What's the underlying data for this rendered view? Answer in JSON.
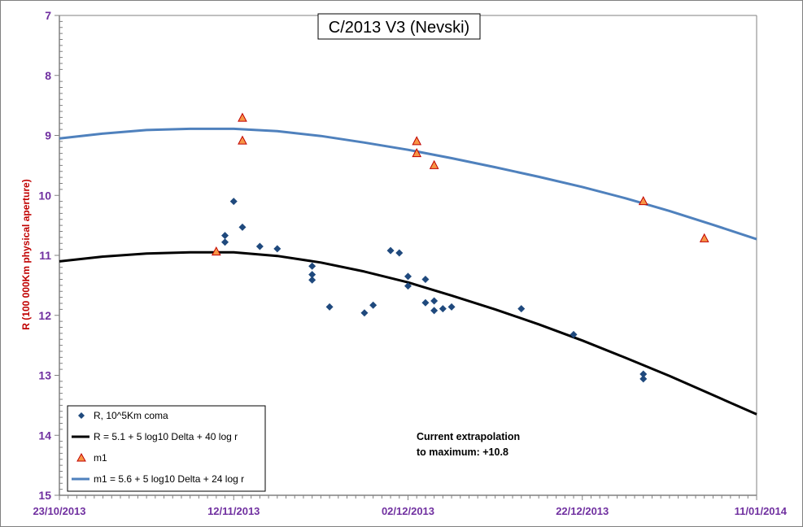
{
  "chart_data": {
    "type": "scatter",
    "title": "C/2013 V3 (Nevski)",
    "ylabel": "R (100 000Km physical aperture)",
    "xlabel": "",
    "x_axis": {
      "type": "date",
      "range": [
        "2013-10-23",
        "2014-01-11"
      ],
      "tick_labels": [
        "23/10/2013",
        "12/11/2013",
        "02/12/2013",
        "22/12/2013",
        "11/01/2014"
      ]
    },
    "y_axis": {
      "inverted": true,
      "range": [
        7,
        15
      ],
      "tick_labels": [
        "7",
        "8",
        "9",
        "10",
        "11",
        "12",
        "13",
        "14",
        "15"
      ]
    },
    "grid": "off",
    "legend_position": "bottom-left",
    "legend": [
      "R, 10^5Km coma",
      "R = 5.1 + 5 log10 Delta + 40  log r",
      "m1",
      "m1 = 5.6 + 5 log10 Delta + 24 log r"
    ],
    "annotation": "Current extrapolation\nto maximum: +10.8",
    "series": [
      {
        "name": "R, 10^5Km coma",
        "kind": "points",
        "marker": "diamond",
        "color": "#1F497D",
        "points": [
          [
            "2013-11-11",
            10.67
          ],
          [
            "2013-11-11",
            10.78
          ],
          [
            "2013-11-12",
            10.1
          ],
          [
            "2013-11-13",
            10.53
          ],
          [
            "2013-11-15",
            10.85
          ],
          [
            "2013-11-17",
            10.89
          ],
          [
            "2013-11-21",
            11.18
          ],
          [
            "2013-11-21",
            11.32
          ],
          [
            "2013-11-21",
            11.41
          ],
          [
            "2013-11-23",
            11.86
          ],
          [
            "2013-11-27",
            11.96
          ],
          [
            "2013-11-28",
            11.83
          ],
          [
            "2013-11-30",
            10.92
          ],
          [
            "2013-12-01",
            10.96
          ],
          [
            "2013-12-02",
            11.35
          ],
          [
            "2013-12-02",
            11.51
          ],
          [
            "2013-12-04",
            11.4
          ],
          [
            "2013-12-04",
            11.79
          ],
          [
            "2013-12-05",
            11.76
          ],
          [
            "2013-12-05",
            11.92
          ],
          [
            "2013-12-06",
            11.89
          ],
          [
            "2013-12-07",
            11.86
          ],
          [
            "2013-12-15",
            11.89
          ],
          [
            "2013-12-21",
            12.32
          ],
          [
            "2013-12-29",
            12.98
          ],
          [
            "2013-12-29",
            13.06
          ]
        ]
      },
      {
        "name": "R = 5.1 + 5 log10 Delta + 40  log r",
        "kind": "curve",
        "color": "#000000",
        "points": [
          [
            "2013-10-23",
            11.1
          ],
          [
            "2013-10-28",
            11.02
          ],
          [
            "2013-11-02",
            10.97
          ],
          [
            "2013-11-07",
            10.95
          ],
          [
            "2013-11-12",
            10.95
          ],
          [
            "2013-11-17",
            11.01
          ],
          [
            "2013-11-22",
            11.12
          ],
          [
            "2013-11-27",
            11.27
          ],
          [
            "2013-12-02",
            11.45
          ],
          [
            "2013-12-07",
            11.67
          ],
          [
            "2013-12-12",
            11.9
          ],
          [
            "2013-12-17",
            12.15
          ],
          [
            "2013-12-22",
            12.42
          ],
          [
            "2013-12-27",
            12.71
          ],
          [
            "2014-01-01",
            13.01
          ],
          [
            "2014-01-06",
            13.33
          ],
          [
            "2014-01-11",
            13.65
          ]
        ]
      },
      {
        "name": "m1",
        "kind": "points",
        "marker": "triangle",
        "color": "#F79646",
        "points": [
          [
            "2013-11-10",
            10.94
          ],
          [
            "2013-11-13",
            8.71
          ],
          [
            "2013-11-13",
            9.09
          ],
          [
            "2013-12-03",
            9.1
          ],
          [
            "2013-12-03",
            9.3
          ],
          [
            "2013-12-05",
            9.5
          ],
          [
            "2013-12-29",
            10.1
          ],
          [
            "2014-01-05",
            10.72
          ]
        ]
      },
      {
        "name": "m1 = 5.6 + 5 log10 Delta + 24 log r",
        "kind": "curve",
        "color": "#4F81BD",
        "points": [
          [
            "2013-10-23",
            9.05
          ],
          [
            "2013-10-28",
            8.97
          ],
          [
            "2013-11-02",
            8.91
          ],
          [
            "2013-11-07",
            8.89
          ],
          [
            "2013-11-12",
            8.89
          ],
          [
            "2013-11-17",
            8.93
          ],
          [
            "2013-11-22",
            9.01
          ],
          [
            "2013-11-27",
            9.12
          ],
          [
            "2013-12-02",
            9.24
          ],
          [
            "2013-12-07",
            9.38
          ],
          [
            "2013-12-12",
            9.53
          ],
          [
            "2013-12-17",
            9.69
          ],
          [
            "2013-12-22",
            9.86
          ],
          [
            "2013-12-27",
            10.05
          ],
          [
            "2014-01-01",
            10.26
          ],
          [
            "2014-01-06",
            10.49
          ],
          [
            "2014-01-11",
            10.73
          ]
        ]
      }
    ]
  }
}
